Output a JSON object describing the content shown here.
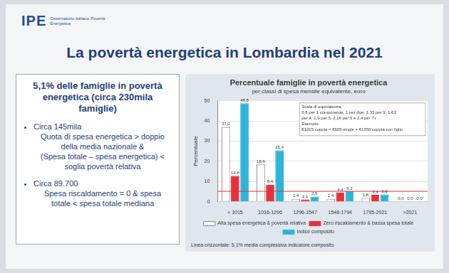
{
  "slide": {
    "logo": "IPE",
    "logo_subtitle": "Osservatorio Italiano Povertà Energetica",
    "title": "La povertà energetica in Lombardia nel 2021",
    "summary": {
      "heading": "5,1% delle famiglie in povertà energetica (circa 230mila famiglie)",
      "bullets": [
        [
          "Circa 145mila",
          "Quota di spesa energetica > doppio della media nazionale &",
          "(Spesa totale – spesa energetica) < soglia povertà relativa"
        ],
        [
          "Circa 89.700",
          "Spesa riscaldamento = 0 & spesa totale < spesa totale mediana"
        ]
      ]
    }
  },
  "chart_data": {
    "type": "bar",
    "title": "Percentuale famiglie in povertà energetica",
    "subtitle": "per classi di spesa mensile equivalente, euro",
    "y_label": "Percentuale",
    "categories": [
      "< 1015",
      "1016-1296",
      "1296-1547",
      "1548-1794",
      "1795-2021",
      ">2021"
    ],
    "series": [
      {
        "name": "Alta spesa energetica & povertà relativa",
        "color": "#ffffff",
        "values": [
          37.0,
          18.6,
          1.4,
          1.4,
          1.8,
          0.0
        ],
        "value_labels": [
          "37,0",
          "18,6",
          "1,4",
          "1,4",
          "1,8",
          "0,0"
        ]
      },
      {
        "name": "Zero riscaldamento & bassa spesa totale",
        "color": "#e8303a",
        "values": [
          12.8,
          8.4,
          1.1,
          4.4,
          3.4,
          0.0
        ],
        "value_labels": [
          "12,8",
          "8,4",
          "1,1",
          "4,4",
          "3,4",
          "0,0"
        ]
      },
      {
        "name": "Indice composito",
        "color": "#2bb5d8",
        "values": [
          48.8,
          25.4,
          2.5,
          5.2,
          3.6,
          0.0
        ],
        "value_labels": [
          "48,8",
          "25,4",
          "2,5",
          "5,2",
          "3,6",
          "0,0"
        ]
      }
    ],
    "ylim": [
      0,
      50
    ],
    "yticks": [
      0,
      10,
      20,
      30,
      40,
      50
    ],
    "grid": true,
    "legend": "bottom",
    "data_labels": true,
    "reference_line": {
      "value": 5.1,
      "color": "#e03030",
      "label": "Linea orizzontale: 5,1% media complessiva indicatore composito"
    },
    "annotation": [
      "Scala di equivalenza:",
      "0,6 per 1 componente, 1 per due; 1,33 per 3; 1,63",
      "per 4; 1,9 per 5, 2,16 per 6 e 2,4 per 7+",
      "Esempio:",
      "€1015 coppia = €609 single = €1350 coppia con figlio"
    ]
  }
}
